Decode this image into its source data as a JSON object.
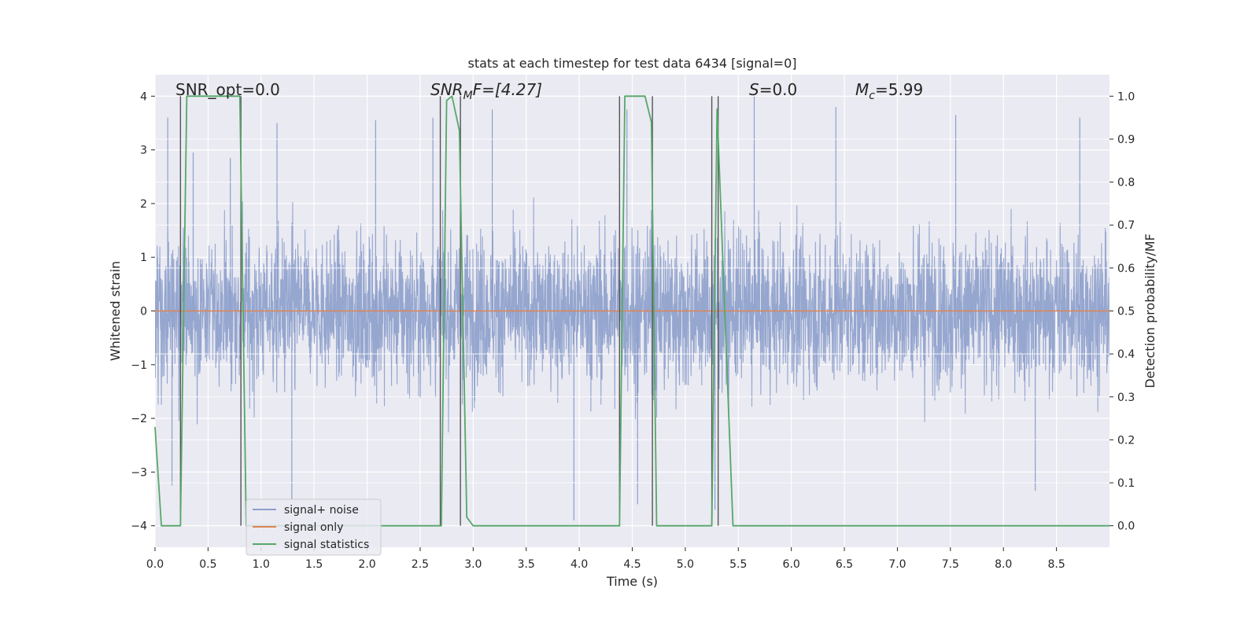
{
  "chart_data": {
    "type": "line",
    "title": "stats at each timestep for test data 6434 [signal=0]",
    "xlabel": "Time (s)",
    "ylabel_left": "Whitened strain",
    "ylabel_right": "Detection probability/MF",
    "xlim": [
      0.0,
      9.0
    ],
    "ylim_left": [
      -4.4,
      4.4
    ],
    "ylim_right": [
      -0.05,
      1.05
    ],
    "xticks": [
      "0.0",
      "0.5",
      "1.0",
      "1.5",
      "2.0",
      "2.5",
      "3.0",
      "3.5",
      "4.0",
      "4.5",
      "5.0",
      "5.5",
      "6.0",
      "6.5",
      "7.0",
      "7.5",
      "8.0",
      "8.5"
    ],
    "xtick_values": [
      0.0,
      0.5,
      1.0,
      1.5,
      2.0,
      2.5,
      3.0,
      3.5,
      4.0,
      4.5,
      5.0,
      5.5,
      6.0,
      6.5,
      7.0,
      7.5,
      8.0,
      8.5
    ],
    "yticks_left": [
      "−4",
      "−3",
      "−2",
      "−1",
      "0",
      "1",
      "2",
      "3",
      "4"
    ],
    "ytick_left_values": [
      -4,
      -3,
      -2,
      -1,
      0,
      1,
      2,
      3,
      4
    ],
    "yticks_right": [
      "0.0",
      "0.1",
      "0.2",
      "0.3",
      "0.4",
      "0.5",
      "0.6",
      "0.7",
      "0.8",
      "0.9",
      "1.0"
    ],
    "ytick_right_values": [
      0.0,
      0.1,
      0.2,
      0.3,
      0.4,
      0.5,
      0.6,
      0.7,
      0.8,
      0.9,
      1.0
    ],
    "annotations": {
      "snr_opt": "SNR_opt=0.0",
      "snr_mf_base": "SNR",
      "snr_mf_sub": "M",
      "snr_mf_rest": "F=[4.27]",
      "s_label": "S",
      "s_rest": "=0.0",
      "mc_base": "M",
      "mc_sub": "c",
      "mc_rest": "=5.99"
    },
    "series": [
      {
        "name": "signal+ noise",
        "color": "#8c9fcb",
        "style": "dense noise trace",
        "envelope_abs": [
          1.7,
          1.55,
          1.6,
          1.5,
          1.6,
          1.65,
          1.55,
          1.6,
          1.6,
          1.7,
          1.6,
          1.6,
          1.55,
          1.55,
          1.6,
          1.65,
          1.6,
          1.6
        ],
        "peaks": [
          {
            "x": 0.12,
            "y": 3.6
          },
          {
            "x": 0.36,
            "y": 2.95
          },
          {
            "x": 0.71,
            "y": 2.85
          },
          {
            "x": 1.15,
            "y": 3.5
          },
          {
            "x": 2.08,
            "y": 3.55
          },
          {
            "x": 2.62,
            "y": 3.6
          },
          {
            "x": 3.18,
            "y": 3.75
          },
          {
            "x": 4.45,
            "y": 3.75
          },
          {
            "x": 5.65,
            "y": 4.0
          },
          {
            "x": 6.42,
            "y": 3.8
          },
          {
            "x": 7.55,
            "y": 3.65
          },
          {
            "x": 8.72,
            "y": 3.6
          },
          {
            "x": 1.29,
            "y": -3.5
          },
          {
            "x": 3.95,
            "y": -3.9
          },
          {
            "x": 4.55,
            "y": -3.6
          },
          {
            "x": 5.28,
            "y": -3.7
          },
          {
            "x": 8.3,
            "y": -3.35
          },
          {
            "x": 0.16,
            "y": -3.25
          }
        ]
      },
      {
        "name": "signal only",
        "color": "#dd8452",
        "x": [
          0.0,
          9.0
        ],
        "y": [
          0.0,
          0.0
        ]
      },
      {
        "name": "signal statistics",
        "color": "#55a868",
        "axis": "right",
        "x": [
          0.0,
          0.06,
          0.24,
          0.3,
          0.8,
          0.86,
          2.7,
          2.75,
          2.8,
          2.87,
          2.94,
          3.0,
          4.38,
          4.43,
          4.62,
          4.68,
          4.73,
          5.25,
          5.3,
          5.36,
          5.45,
          9.0
        ],
        "y": [
          0.23,
          0.0,
          0.0,
          1.0,
          1.0,
          0.0,
          0.0,
          0.99,
          1.0,
          0.92,
          0.02,
          0.0,
          0.0,
          1.0,
          1.0,
          0.94,
          0.0,
          0.0,
          0.97,
          0.58,
          0.0,
          0.0
        ]
      }
    ],
    "vertical_markers": [
      0.24,
      0.81,
      2.69,
      2.88,
      4.38,
      4.69,
      5.25,
      5.31
    ],
    "legend": {
      "placement": "lower-left",
      "entries": [
        {
          "label": "signal+ noise",
          "color": "#8c9fcb"
        },
        {
          "label": "signal only",
          "color": "#dd8452"
        },
        {
          "label": "signal statistics",
          "color": "#55a868"
        }
      ]
    },
    "colors": {
      "background": "#eaeaf2",
      "grid": "#ffffff",
      "marker": "#555555"
    }
  }
}
